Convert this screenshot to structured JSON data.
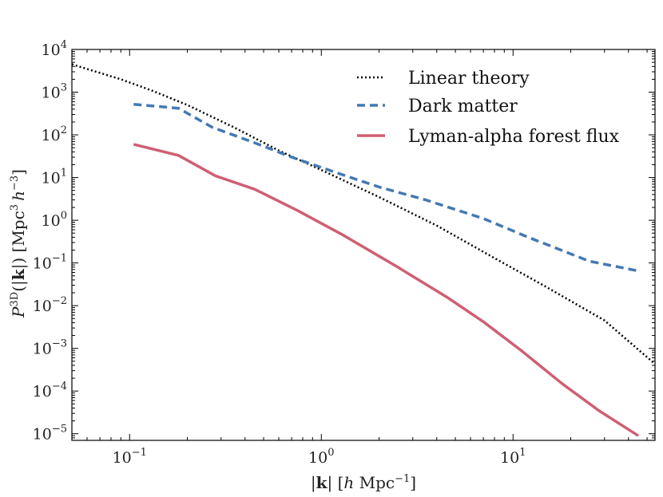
{
  "chart_data": {
    "type": "line",
    "title": "",
    "xlabel": "|k| [h Mpc⁻¹]",
    "ylabel": "P³ᴰ(|k|) [Mpc³ h⁻³]",
    "xlabel_parts": {
      "pre": "|",
      "bold": "k",
      "mid": "| [",
      "ital": "h",
      "unit": " Mpc",
      "sup": "−1",
      "post": "]"
    },
    "ylabel_parts": {
      "sym": "P",
      "sup": "3D",
      "arg_pre": "(|",
      "arg_bold": "k",
      "arg_post": "|) [Mpc",
      "sup2": "3",
      "ital": "h",
      "sup3": "−3",
      "post": "]"
    },
    "xscale": "log",
    "yscale": "log",
    "xlim": [
      0.05,
      55
    ],
    "ylim": [
      7e-06,
      10000
    ],
    "x_ticks": [
      {
        "value": 0.1,
        "base": "10",
        "exp": "−1"
      },
      {
        "value": 1,
        "base": "10",
        "exp": "0"
      },
      {
        "value": 10,
        "base": "10",
        "exp": "1"
      }
    ],
    "y_ticks": [
      {
        "value": 1e-05,
        "base": "10",
        "exp": "−5"
      },
      {
        "value": 0.0001,
        "base": "10",
        "exp": "−4"
      },
      {
        "value": 0.001,
        "base": "10",
        "exp": "−3"
      },
      {
        "value": 0.01,
        "base": "10",
        "exp": "−2"
      },
      {
        "value": 0.1,
        "base": "10",
        "exp": "−1"
      },
      {
        "value": 1,
        "base": "10",
        "exp": "0"
      },
      {
        "value": 10,
        "base": "10",
        "exp": "1"
      },
      {
        "value": 100,
        "base": "10",
        "exp": "2"
      },
      {
        "value": 1000,
        "base": "10",
        "exp": "3"
      },
      {
        "value": 10000,
        "base": "10",
        "exp": "4"
      }
    ],
    "legend_position": "top-right",
    "series": [
      {
        "name": "Linear theory",
        "style": "dotted",
        "color": "#000000",
        "x": [
          0.05,
          0.09,
          0.13,
          0.2,
          0.35,
          0.6,
          1.0,
          2.0,
          4.0,
          8.0,
          15.0,
          30.0,
          55.0
        ],
        "y": [
          4500,
          2000,
          1100,
          500,
          150,
          43,
          15,
          3.5,
          0.75,
          0.13,
          0.027,
          0.0045,
          0.00043
        ]
      },
      {
        "name": "Dark matter",
        "style": "dashed",
        "color": "#4479b3",
        "x": [
          0.105,
          0.18,
          0.27,
          0.45,
          0.7,
          1.2,
          2.0,
          3.5,
          7.0,
          12.0,
          25.0,
          45.0
        ],
        "y": [
          520,
          420,
          150,
          65,
          30,
          13,
          6,
          3,
          1.1,
          0.4,
          0.11,
          0.065
        ]
      },
      {
        "name": "Lyman-alpha forest flux",
        "style": "solid",
        "color": "#cf5f72",
        "x": [
          0.105,
          0.18,
          0.28,
          0.45,
          0.75,
          1.3,
          2.5,
          4.5,
          7.0,
          11.0,
          18.0,
          28.0,
          45.0
        ],
        "y": [
          60,
          33,
          11,
          5.3,
          1.7,
          0.45,
          0.08,
          0.016,
          0.0042,
          0.0009,
          0.00015,
          3.5e-05,
          9e-06
        ]
      }
    ]
  }
}
